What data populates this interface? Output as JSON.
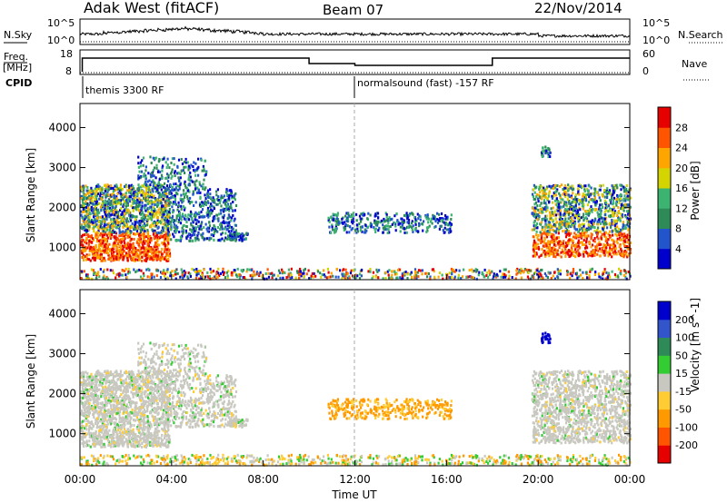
{
  "header": {
    "radar_title": "Adak West (fitACF)",
    "beam": "Beam 07",
    "date": "22/Nov/2014"
  },
  "noise_panel": {
    "left_label": "N.Sky",
    "right_label": "N.Search",
    "left_ticks": [
      "10^5",
      "10^0"
    ],
    "right_ticks": [
      "10^5",
      "10^0"
    ]
  },
  "freq_panel": {
    "left_label_top": "Freq.",
    "left_label_bottom": "[MHz]",
    "right_label": "Nave",
    "left_ticks": [
      "18",
      "8"
    ],
    "right_ticks": [
      "60",
      "0"
    ]
  },
  "cpid_panel": {
    "label": "CPID",
    "segments": [
      "themis 3300 RF",
      "normalsound (fast) -157 RF"
    ]
  },
  "x_axis": {
    "title": "Time UT",
    "ticks": [
      "00:00",
      "04:00",
      "08:00",
      "12:00",
      "16:00",
      "20:00",
      "00:00"
    ]
  },
  "colors": {
    "power": [
      "#0000cc",
      "#2255cc",
      "#2e8b57",
      "#3cb371",
      "#d4d400",
      "#ffa500",
      "#ff5500",
      "#e60000"
    ],
    "velocity": [
      "#e60000",
      "#ff5500",
      "#ff9900",
      "#ffcc33",
      "#c8c8c0",
      "#33cc33",
      "#2e8b57",
      "#3355cc",
      "#0000cc"
    ]
  },
  "chart_data": [
    {
      "type": "heatmap",
      "name_ref": "power",
      "ylabel": "Slant Range [km]",
      "xlabel": "Time UT",
      "x_ticks": [
        "00:00",
        "04:00",
        "08:00",
        "12:00",
        "16:00",
        "20:00",
        "00:00"
      ],
      "y_ticks": [
        1000,
        2000,
        3000,
        4000
      ],
      "ylim": [
        200,
        4600
      ],
      "colorbar": {
        "label": "Power [dB]",
        "ticks": [
          4,
          8,
          12,
          16,
          20,
          24,
          28
        ]
      },
      "x_hour_range": [
        0,
        24
      ]
    },
    {
      "type": "heatmap",
      "name_ref": "velocity",
      "ylabel": "Slant Range [km]",
      "xlabel": "Time UT",
      "x_ticks": [
        "00:00",
        "04:00",
        "08:00",
        "12:00",
        "16:00",
        "20:00",
        "00:00"
      ],
      "y_ticks": [
        1000,
        2000,
        3000,
        4000
      ],
      "ylim": [
        200,
        4600
      ],
      "colorbar": {
        "label": "Velocity [m s^-1]",
        "ticks": [
          200,
          100,
          50,
          15,
          -15,
          -50,
          -100,
          -200
        ]
      },
      "x_hour_range": [
        0,
        24
      ]
    }
  ]
}
